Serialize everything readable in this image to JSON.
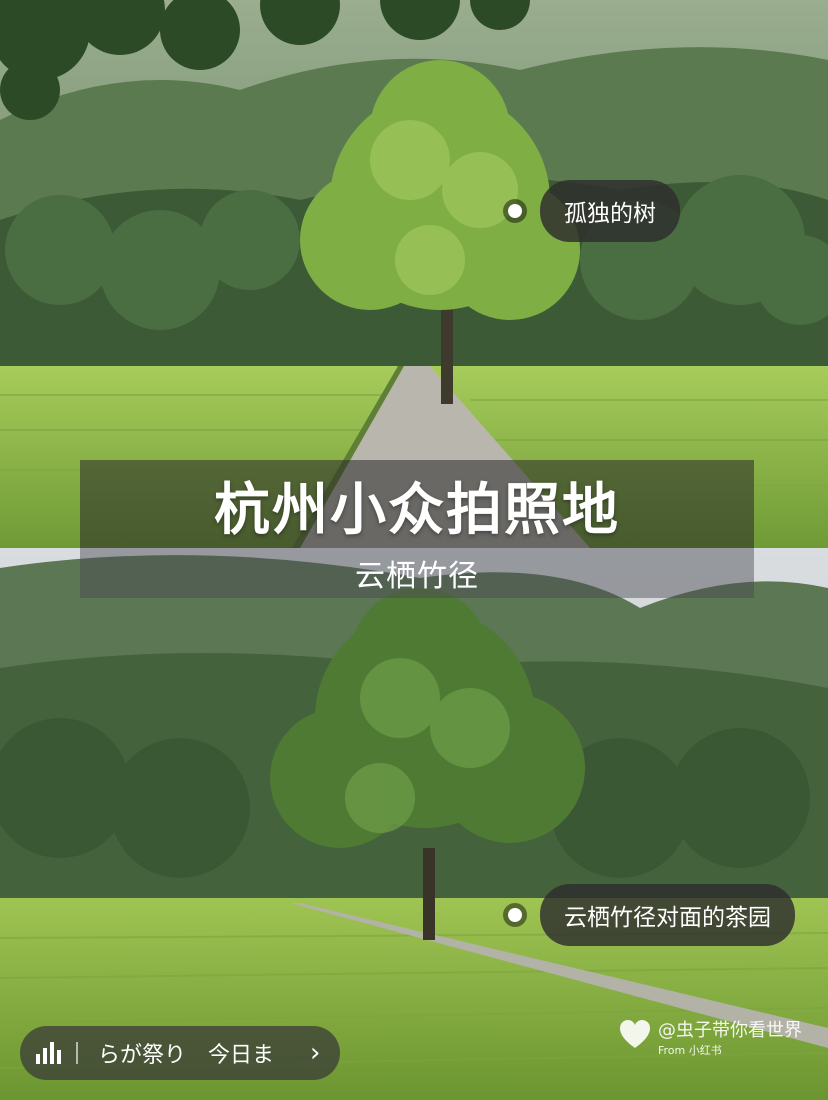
{
  "title": "杭州小众拍照地",
  "subtitle": "云栖竹径",
  "tags": {
    "tree": "孤独的树",
    "tea_garden": "云栖竹径对面的茶园"
  },
  "music_bar": {
    "icon": "audio-bars-icon",
    "track_text": "らが祭り　今日ま",
    "chevron": "›"
  },
  "watermark": {
    "line1": "@虫子带你看世界",
    "line2": "From 小红书"
  },
  "colors": {
    "tea_green": "#8fb84a",
    "forest": "#3f5a35",
    "tag_bg": "#2d2d2d"
  }
}
